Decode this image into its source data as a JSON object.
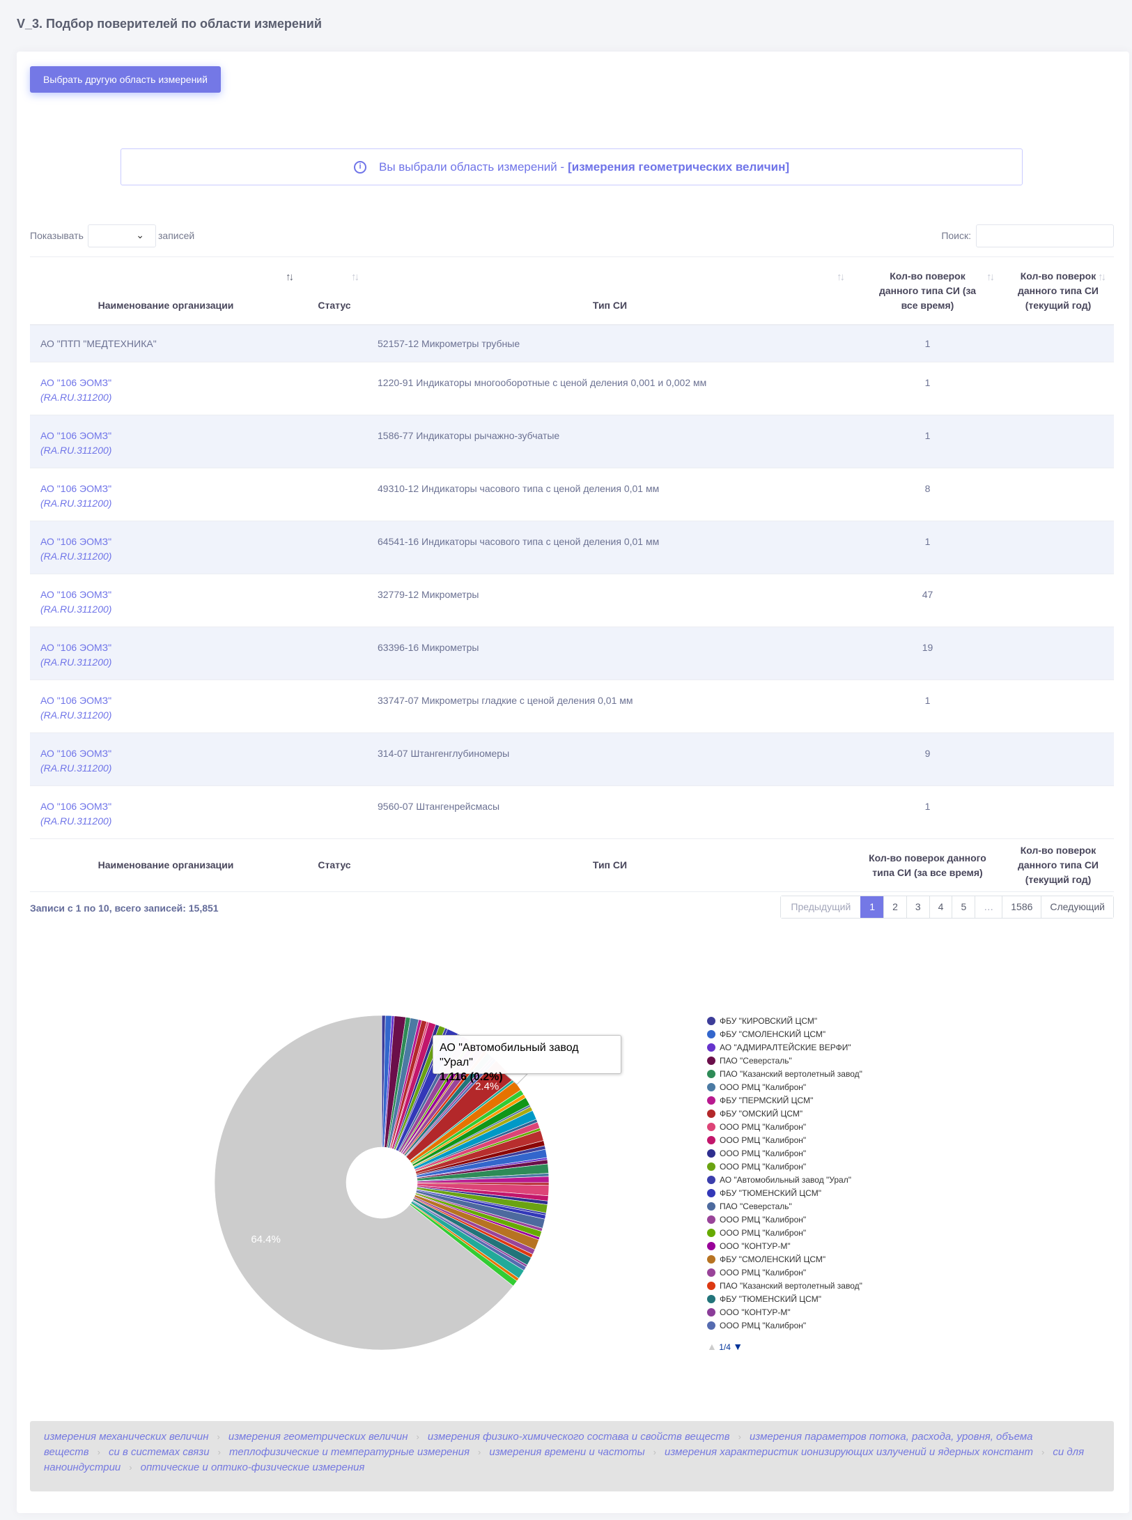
{
  "page": {
    "title": "V_3. Подбор поверителей по области измерений",
    "change_area_button": "Выбрать другую область измерений"
  },
  "alert": {
    "prefix": "Вы выбрали область измерений - ",
    "area": "[измерения геометрических величин]"
  },
  "controls": {
    "show_label": "Показывать",
    "entries_label": "записей",
    "search_label": "Поиск:",
    "page_size_value": "",
    "search_value": ""
  },
  "table": {
    "columns": [
      "Наименование организации",
      "Статус",
      "Тип СИ",
      "Кол-во поверок данного типа СИ (за все время)",
      "Кол-во поверок данного типа СИ (текущий год)"
    ],
    "rows": [
      {
        "org": "АО \"ПТП \"МЕДТЕХНИКА\"",
        "reg": "",
        "status": "",
        "type": "52157-12 Микрометры трубные",
        "all_time": "1",
        "current_year": ""
      },
      {
        "org": "АО \"106 ЭОМЗ\"",
        "reg": "(RA.RU.311200)",
        "status": "",
        "type": "1220-91 Индикаторы многооборотные с ценой деления 0,001 и 0,002 мм",
        "all_time": "1",
        "current_year": ""
      },
      {
        "org": "АО \"106 ЭОМЗ\"",
        "reg": "(RA.RU.311200)",
        "status": "",
        "type": "1586-77 Индикаторы рычажно-зубчатые",
        "all_time": "1",
        "current_year": ""
      },
      {
        "org": "АО \"106 ЭОМЗ\"",
        "reg": "(RA.RU.311200)",
        "status": "",
        "type": "49310-12 Индикаторы часового типа с ценой деления 0,01 мм",
        "all_time": "8",
        "current_year": ""
      },
      {
        "org": "АО \"106 ЭОМЗ\"",
        "reg": "(RA.RU.311200)",
        "status": "",
        "type": "64541-16 Индикаторы часового типа с ценой деления 0,01 мм",
        "all_time": "1",
        "current_year": ""
      },
      {
        "org": "АО \"106 ЭОМЗ\"",
        "reg": "(RA.RU.311200)",
        "status": "",
        "type": "32779-12 Микрометры",
        "all_time": "47",
        "current_year": ""
      },
      {
        "org": "АО \"106 ЭОМЗ\"",
        "reg": "(RA.RU.311200)",
        "status": "",
        "type": "63396-16 Микрометры",
        "all_time": "19",
        "current_year": ""
      },
      {
        "org": "АО \"106 ЭОМЗ\"",
        "reg": "(RA.RU.311200)",
        "status": "",
        "type": "33747-07 Микрометры гладкие с ценой деления 0,01 мм",
        "all_time": "1",
        "current_year": ""
      },
      {
        "org": "АО \"106 ЭОМЗ\"",
        "reg": "(RA.RU.311200)",
        "status": "",
        "type": "314-07 Штангенглубиномеры",
        "all_time": "9",
        "current_year": ""
      },
      {
        "org": "АО \"106 ЭОМЗ\"",
        "reg": "(RA.RU.311200)",
        "status": "",
        "type": "9560-07 Штангенрейсмасы",
        "all_time": "1",
        "current_year": ""
      }
    ]
  },
  "pagination": {
    "info": "Записи с 1 по 10, всего записей: 15,851",
    "prev": "Предыдущий",
    "pages": [
      "1",
      "2",
      "3",
      "4",
      "5",
      "…",
      "1586"
    ],
    "active": "1",
    "next": "Следующий"
  },
  "chart_data": {
    "type": "pie",
    "slices": [
      {
        "label": "",
        "percent": 64.4,
        "color": "#cccccc"
      },
      {
        "label": "",
        "percent": 2.4,
        "color": "#b3282a"
      }
    ],
    "data_labels": [
      "64.4%",
      "2.4%"
    ],
    "tooltip": {
      "title": "АО \"Автомобильный завод \"Урал\"",
      "value": "1,116 (0.2%)"
    },
    "legend_page": "1/4",
    "legend": [
      {
        "label": "ФБУ \"КИРОВСКИЙ ЦСМ\"",
        "color": "#3d3d99"
      },
      {
        "label": "ФБУ \"СМОЛЕНСКИЙ ЦСМ\"",
        "color": "#3366cc"
      },
      {
        "label": "АО \"АДМИРАЛТЕЙСКИЕ ВЕРФИ\"",
        "color": "#6633cc"
      },
      {
        "label": "ПАО \"Северсталь\"",
        "color": "#6b0f4a"
      },
      {
        "label": "ПАО \"Казанский вертолетный завод\"",
        "color": "#2e8b57"
      },
      {
        "label": "ООО РМЦ \"Калиброн\"",
        "color": "#4b7aa3"
      },
      {
        "label": "ФБУ \"ПЕРМСКИЙ ЦСМ\"",
        "color": "#b8198f"
      },
      {
        "label": "ФБУ \"ОМСКИЙ ЦСМ\"",
        "color": "#b3282a"
      },
      {
        "label": "ООО РМЦ \"Калиброн\"",
        "color": "#dd4477"
      },
      {
        "label": "ООО РМЦ \"Калиброн\"",
        "color": "#c2166b"
      },
      {
        "label": "ООО РМЦ \"Калиброн\"",
        "color": "#2f2f8f"
      },
      {
        "label": "ООО РМЦ \"Калиброн\"",
        "color": "#6aa312"
      },
      {
        "label": "АО \"Автомобильный завод \"Урал\"",
        "color": "#3b3eac"
      },
      {
        "label": "ФБУ \"ТЮМЕНСКИЙ ЦСМ\"",
        "color": "#3338b8"
      },
      {
        "label": "ПАО \"Северсталь\"",
        "color": "#4d6a9e"
      },
      {
        "label": "ООО РМЦ \"Калиброн\"",
        "color": "#994499"
      },
      {
        "label": "ООО РМЦ \"Калиброн\"",
        "color": "#66aa00"
      },
      {
        "label": "ООО \"КОНТУР-М\"",
        "color": "#990099"
      },
      {
        "label": "ФБУ \"СМОЛЕНСКИЙ ЦСМ\"",
        "color": "#b77322"
      },
      {
        "label": "ООО РМЦ \"Калиброн\"",
        "color": "#994499"
      },
      {
        "label": "ПАО \"Казанский вертолетный завод\"",
        "color": "#dc3912"
      },
      {
        "label": "ФБУ \"ТЮМЕНСКИЙ ЦСМ\"",
        "color": "#22747a"
      },
      {
        "label": "ООО \"КОНТУР-М\"",
        "color": "#8b3d99"
      },
      {
        "label": "ООО РМЦ \"Калиброн\"",
        "color": "#556bb0"
      }
    ]
  },
  "footer_tags": [
    "измерения механических величин",
    "измерения геометрических величин",
    "измерения физико-химического состава и свойств веществ",
    "измерения параметров потока, расхода, уровня, объема веществ",
    "си в системах связи",
    "теплофизические и температурные измерения",
    "измерения времени и частоты",
    "измерения характеристик ионизирующих излучений и ядерных констант",
    "си для наноиндустрии",
    "оптические и оптико-физические измерения"
  ]
}
